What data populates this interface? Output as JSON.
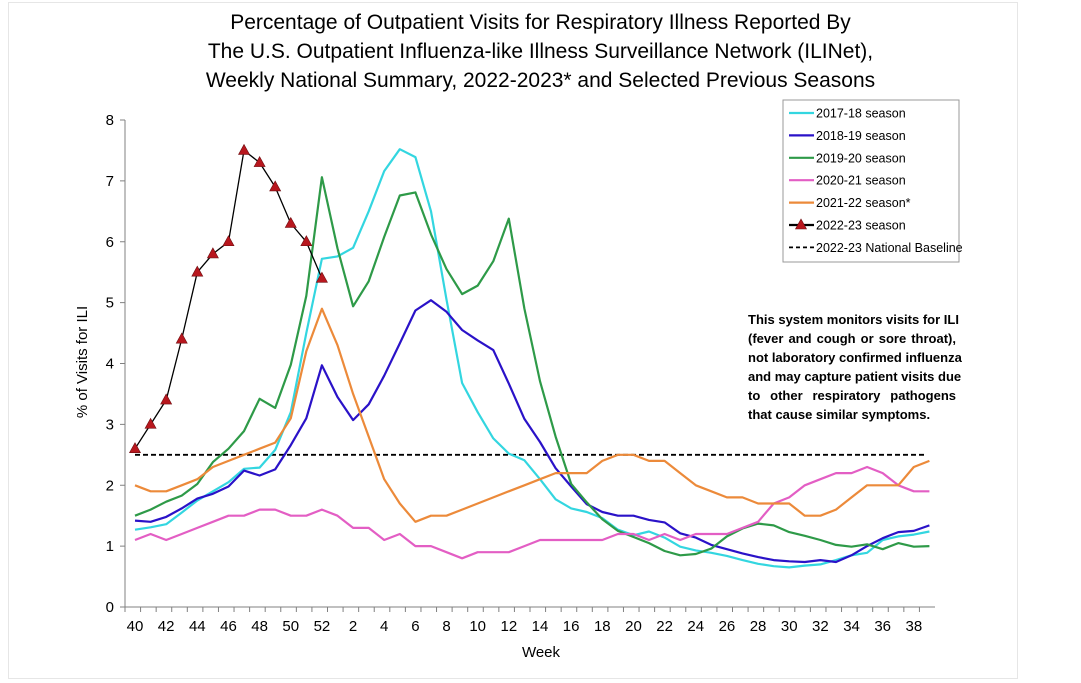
{
  "chart_data": {
    "type": "line",
    "title_lines": [
      "Percentage of Outpatient Visits for Respiratory Illness Reported By",
      "The U.S. Outpatient Influenza-like Illness Surveillance Network (ILINet),",
      "Weekly National Summary, 2022-2023* and Selected Previous Seasons"
    ],
    "xlabel": "Week",
    "ylabel": "% of Visits for ILI",
    "ylim": [
      0,
      8
    ],
    "y_ticks": [
      "0",
      "1",
      "2",
      "3",
      "4",
      "5",
      "6",
      "7",
      "8"
    ],
    "weeks": [
      40,
      41,
      42,
      43,
      44,
      45,
      46,
      47,
      48,
      49,
      50,
      51,
      52,
      1,
      2,
      3,
      4,
      5,
      6,
      7,
      8,
      9,
      10,
      11,
      12,
      13,
      14,
      15,
      16,
      17,
      18,
      19,
      20,
      21,
      22,
      23,
      24,
      25,
      26,
      27,
      28,
      29,
      30,
      31,
      32,
      33,
      34,
      35,
      36,
      37,
      38,
      39
    ],
    "x_tick_labels": [
      "40",
      "42",
      "44",
      "46",
      "48",
      "50",
      "52",
      "2",
      "4",
      "6",
      "8",
      "10",
      "12",
      "14",
      "16",
      "18",
      "20",
      "22",
      "24",
      "26",
      "28",
      "30",
      "32",
      "34",
      "36",
      "38"
    ],
    "legend_position": "top-right",
    "grid": false,
    "series": [
      {
        "name": "2017-18 season",
        "color": "#33d6e0",
        "marker": "none",
        "values": [
          1.27,
          1.31,
          1.36,
          1.55,
          1.75,
          1.9,
          2.05,
          2.27,
          2.29,
          2.58,
          3.2,
          4.5,
          5.72,
          5.76,
          5.9,
          6.5,
          7.16,
          7.52,
          7.39,
          6.5,
          5.05,
          3.68,
          3.2,
          2.77,
          2.52,
          2.41,
          2.1,
          1.77,
          1.62,
          1.56,
          1.46,
          1.27,
          1.18,
          1.24,
          1.14,
          0.99,
          0.93,
          0.89,
          0.84,
          0.77,
          0.71,
          0.67,
          0.65,
          0.68,
          0.7,
          0.77,
          0.85,
          0.89,
          1.1,
          1.16,
          1.19,
          1.24
        ]
      },
      {
        "name": "2018-19 season",
        "color": "#2a12c8",
        "marker": "none",
        "values": [
          1.42,
          1.4,
          1.48,
          1.62,
          1.78,
          1.86,
          1.98,
          2.24,
          2.16,
          2.26,
          2.66,
          3.1,
          3.97,
          3.45,
          3.07,
          3.33,
          3.8,
          4.33,
          4.87,
          5.04,
          4.85,
          4.55,
          4.38,
          4.22,
          3.67,
          3.09,
          2.71,
          2.28,
          1.98,
          1.69,
          1.56,
          1.5,
          1.5,
          1.43,
          1.39,
          1.21,
          1.14,
          1.02,
          0.95,
          0.88,
          0.82,
          0.77,
          0.75,
          0.74,
          0.77,
          0.74,
          0.85,
          1.0,
          1.13,
          1.23,
          1.25,
          1.34
        ]
      },
      {
        "name": "2019-20 season",
        "color": "#2e9a48",
        "marker": "none",
        "values": [
          1.5,
          1.6,
          1.73,
          1.83,
          2.02,
          2.38,
          2.6,
          2.89,
          3.42,
          3.27,
          3.98,
          5.11,
          7.06,
          5.89,
          4.94,
          5.35,
          6.08,
          6.76,
          6.81,
          6.12,
          5.55,
          5.14,
          5.28,
          5.68,
          6.38,
          4.9,
          3.71,
          2.8,
          2.02,
          1.72,
          1.44,
          1.25,
          1.15,
          1.05,
          0.92,
          0.85,
          0.87,
          0.96,
          1.16,
          1.29,
          1.37,
          1.34,
          1.23,
          1.17,
          1.1,
          1.02,
          0.99,
          1.03,
          0.95,
          1.05,
          0.99,
          1.0
        ]
      },
      {
        "name": "2020-21 season",
        "color": "#e35ec4",
        "marker": "none",
        "values": [
          1.1,
          1.2,
          1.1,
          1.2,
          1.3,
          1.4,
          1.5,
          1.5,
          1.6,
          1.6,
          1.5,
          1.5,
          1.6,
          1.5,
          1.3,
          1.3,
          1.1,
          1.2,
          1.0,
          1.0,
          0.9,
          0.8,
          0.9,
          0.9,
          0.9,
          1.0,
          1.1,
          1.1,
          1.1,
          1.1,
          1.1,
          1.2,
          1.2,
          1.1,
          1.2,
          1.1,
          1.2,
          1.2,
          1.2,
          1.3,
          1.4,
          1.7,
          1.8,
          2.0,
          2.1,
          2.2,
          2.2,
          2.3,
          2.2,
          2.0,
          1.9,
          1.9
        ]
      },
      {
        "name": "2021-22 season*",
        "color": "#ec8a3a",
        "marker": "none",
        "values": [
          2.0,
          1.9,
          1.9,
          2.0,
          2.1,
          2.3,
          2.4,
          2.5,
          2.6,
          2.7,
          3.1,
          4.2,
          4.9,
          4.3,
          3.5,
          2.8,
          2.1,
          1.7,
          1.4,
          1.5,
          1.5,
          1.6,
          1.7,
          1.8,
          1.9,
          2.0,
          2.1,
          2.2,
          2.2,
          2.2,
          2.4,
          2.5,
          2.5,
          2.4,
          2.4,
          2.2,
          2.0,
          1.9,
          1.8,
          1.8,
          1.7,
          1.7,
          1.7,
          1.5,
          1.5,
          1.6,
          1.8,
          2.0,
          2.0,
          2.0,
          2.3,
          2.4
        ]
      },
      {
        "name": "2022-23 season",
        "color": "#000000",
        "marker": "triangle",
        "marker_color": "#b8171e",
        "values": [
          2.6,
          3.0,
          3.4,
          4.4,
          5.5,
          5.8,
          6.0,
          7.5,
          7.3,
          6.9,
          6.3,
          6.0,
          5.4
        ]
      },
      {
        "name": "2022-23 National Baseline",
        "color": "#000000",
        "dashed": true,
        "value": 2.5
      }
    ],
    "annotation_lines": [
      "This system monitors visits for ILI",
      "(fever and cough or sore throat),",
      "not laboratory confirmed influenza",
      "and may capture patient visits due",
      "to other respiratory pathogens",
      "that cause similar symptoms."
    ]
  }
}
